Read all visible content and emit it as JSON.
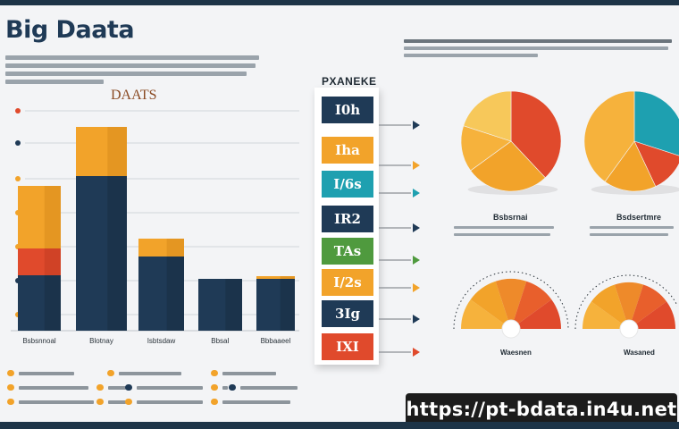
{
  "page_title": "Big Daata",
  "bar_chart_title": "DAATS",
  "flow_title": "PXANEKE",
  "flow_blocks": [
    {
      "label": "I0h",
      "color": "#1f3a56"
    },
    {
      "label": "Iha",
      "color": "#f2a32a"
    },
    {
      "label": "I/6s",
      "color": "#1ea0b0"
    },
    {
      "label": "IR2",
      "color": "#1f3a56"
    },
    {
      "label": "TAs",
      "color": "#4f9a3e"
    },
    {
      "label": "I/2s",
      "color": "#f2a32a"
    },
    {
      "label": "3Ig",
      "color": "#1f3a56"
    },
    {
      "label": "IXI",
      "color": "#e04a2c"
    }
  ],
  "pie_captions": [
    "Bsbsrnai",
    "Bsdsertmre"
  ],
  "gauge_labels": [
    "Waesnen",
    "Wasaned"
  ],
  "url": "https://pt-bdata.in4u.net",
  "colors": {
    "navy": "#1f3a56",
    "orange": "#f2a32a",
    "red": "#e04a2c",
    "teal": "#1ea0b0",
    "green": "#4f9a3e"
  },
  "chart_data": [
    {
      "type": "bar",
      "stacked": true,
      "title": "DAATS",
      "categories": [
        "Bsbsnnoal",
        "Blotnay",
        "Isbtsdaw",
        "BbsaI",
        "Bbbaaeel"
      ],
      "series": [
        {
          "values": [
            62,
            173,
            83,
            58,
            58
          ]
        },
        {
          "values": [
            30,
            0,
            0,
            0,
            0
          ]
        },
        {
          "values": [
            70,
            55,
            20,
            0,
            3
          ]
        }
      ],
      "ylim": [
        0,
        260
      ],
      "grid": true
    },
    {
      "type": "pie",
      "values": [
        38,
        27,
        15,
        20
      ],
      "colors": [
        "#e04a2c",
        "#f2a32a",
        "#f6b23c",
        "#f7c85a"
      ],
      "caption": "Bsbsrnai"
    },
    {
      "type": "pie",
      "values": [
        30,
        13,
        17,
        40
      ],
      "colors": [
        "#1ea0b0",
        "#e04a2c",
        "#f2a32a",
        "#f6b23c"
      ],
      "caption": "Bsdsertmre"
    }
  ]
}
